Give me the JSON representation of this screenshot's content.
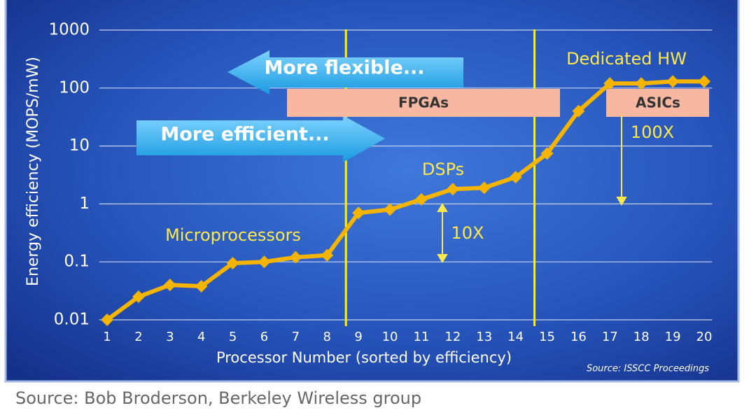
{
  "chart_data": {
    "type": "line",
    "x_label": "Processor Number (sorted by efficiency)",
    "y_label": "Energy efficiency (MOPS/mW)",
    "x": [
      1,
      2,
      3,
      4,
      5,
      6,
      7,
      8,
      9,
      10,
      11,
      12,
      13,
      14,
      15,
      16,
      17,
      18,
      19,
      20
    ],
    "values": [
      0.01,
      0.025,
      0.04,
      0.038,
      0.095,
      0.1,
      0.12,
      0.13,
      0.7,
      0.8,
      1.2,
      1.8,
      1.9,
      2.9,
      7.4,
      40,
      120,
      120,
      130,
      130
    ],
    "color": "#f5b400",
    "log_scale": true,
    "grid": true,
    "xlim": [
      0.75,
      20.25
    ],
    "xticks": [
      1,
      2,
      3,
      4,
      5,
      6,
      7,
      8,
      9,
      10,
      11,
      12,
      13,
      14,
      15,
      16,
      17,
      18,
      19,
      20
    ],
    "ylim": [
      0.01,
      1000
    ],
    "yticks": [
      0.01,
      0.1,
      1,
      10,
      100,
      1000
    ],
    "vlines": [
      8.6,
      14.6
    ],
    "annotations": [
      "More flexible...",
      "More efficient...",
      "FPGAs",
      "ASICs",
      "Dedicated HW",
      "DSPs",
      "Microprocessors",
      "10X",
      "100X"
    ],
    "chart_source": "Source: ISSCC Proceedings",
    "caption": "Source: Bob Broderson, Berkeley Wireless group"
  }
}
